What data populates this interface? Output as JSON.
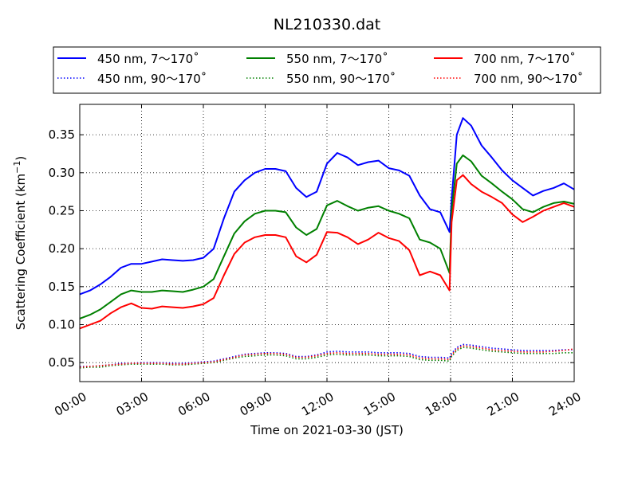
{
  "chart_data": {
    "type": "line",
    "title": "NL210330.dat",
    "xlabel": "Time on 2021-03-30 (JST)",
    "ylabel_main": "Scattering Coefficient (km",
    "ylabel_exp": "−1",
    "ylabel_close": ")",
    "xlim": [
      0,
      24
    ],
    "ylim": [
      0.025,
      0.39
    ],
    "x_ticks": [
      0,
      3,
      6,
      9,
      12,
      15,
      18,
      21,
      24
    ],
    "x_tick_labels": [
      "00:00",
      "03:00",
      "06:00",
      "09:00",
      "12:00",
      "15:00",
      "18:00",
      "21:00",
      "24:00"
    ],
    "y_ticks": [
      0.05,
      0.1,
      0.15,
      0.2,
      0.25,
      0.3,
      0.35
    ],
    "y_tick_labels": [
      "0.05",
      "0.10",
      "0.15",
      "0.20",
      "0.25",
      "0.30",
      "0.35"
    ],
    "grid": true,
    "legend_position": "top",
    "x": [
      0,
      0.5,
      1,
      1.5,
      2,
      2.5,
      3,
      3.5,
      4,
      4.5,
      5,
      5.5,
      6,
      6.5,
      7,
      7.5,
      8,
      8.5,
      9,
      9.5,
      10,
      10.5,
      11,
      11.5,
      12,
      12.5,
      13,
      13.5,
      14,
      14.5,
      15,
      15.5,
      16,
      16.5,
      17,
      17.5,
      17.95,
      18.05,
      18.3,
      18.6,
      19,
      19.5,
      20,
      20.5,
      21,
      21.5,
      22,
      22.5,
      23,
      23.5,
      24
    ],
    "series": [
      {
        "name": "450 nm, 7～170˚",
        "color": "#0000ff",
        "style": "solid",
        "values": [
          0.14,
          0.145,
          0.153,
          0.163,
          0.175,
          0.18,
          0.18,
          0.183,
          0.186,
          0.185,
          0.184,
          0.185,
          0.188,
          0.2,
          0.24,
          0.275,
          0.29,
          0.3,
          0.305,
          0.305,
          0.302,
          0.28,
          0.268,
          0.275,
          0.312,
          0.326,
          0.32,
          0.31,
          0.314,
          0.316,
          0.306,
          0.303,
          0.296,
          0.27,
          0.252,
          0.248,
          0.222,
          0.265,
          0.35,
          0.372,
          0.362,
          0.336,
          0.32,
          0.303,
          0.29,
          0.28,
          0.27,
          0.276,
          0.28,
          0.286,
          0.278
        ]
      },
      {
        "name": "450 nm, 90～170˚",
        "color": "#0000ff",
        "style": "dotted",
        "values": [
          0.045,
          0.045,
          0.046,
          0.047,
          0.049,
          0.049,
          0.05,
          0.05,
          0.05,
          0.049,
          0.049,
          0.05,
          0.051,
          0.052,
          0.055,
          0.058,
          0.061,
          0.062,
          0.063,
          0.063,
          0.062,
          0.058,
          0.058,
          0.06,
          0.064,
          0.065,
          0.064,
          0.064,
          0.064,
          0.063,
          0.063,
          0.063,
          0.062,
          0.058,
          0.057,
          0.057,
          0.056,
          0.062,
          0.07,
          0.074,
          0.073,
          0.071,
          0.069,
          0.068,
          0.067,
          0.066,
          0.066,
          0.066,
          0.066,
          0.067,
          0.067
        ]
      },
      {
        "name": "550 nm, 7～170˚",
        "color": "#008000",
        "style": "solid",
        "values": [
          0.108,
          0.113,
          0.12,
          0.13,
          0.14,
          0.145,
          0.143,
          0.143,
          0.145,
          0.144,
          0.143,
          0.146,
          0.15,
          0.16,
          0.19,
          0.22,
          0.236,
          0.246,
          0.25,
          0.25,
          0.248,
          0.228,
          0.218,
          0.226,
          0.257,
          0.263,
          0.256,
          0.25,
          0.254,
          0.256,
          0.25,
          0.246,
          0.24,
          0.212,
          0.208,
          0.2,
          0.168,
          0.25,
          0.312,
          0.323,
          0.315,
          0.296,
          0.286,
          0.275,
          0.265,
          0.252,
          0.248,
          0.255,
          0.26,
          0.262,
          0.259
        ]
      },
      {
        "name": "550 nm, 90～170˚",
        "color": "#008000",
        "style": "dotted",
        "values": [
          0.043,
          0.044,
          0.044,
          0.046,
          0.047,
          0.048,
          0.048,
          0.048,
          0.048,
          0.047,
          0.047,
          0.048,
          0.049,
          0.05,
          0.053,
          0.056,
          0.058,
          0.059,
          0.06,
          0.06,
          0.059,
          0.055,
          0.055,
          0.057,
          0.06,
          0.061,
          0.06,
          0.06,
          0.06,
          0.059,
          0.059,
          0.059,
          0.058,
          0.054,
          0.053,
          0.053,
          0.052,
          0.058,
          0.066,
          0.07,
          0.069,
          0.067,
          0.065,
          0.064,
          0.063,
          0.062,
          0.062,
          0.062,
          0.062,
          0.063,
          0.063
        ]
      },
      {
        "name": "700 nm, 7～170˚",
        "color": "#ff0000",
        "style": "solid",
        "values": [
          0.095,
          0.1,
          0.105,
          0.115,
          0.123,
          0.128,
          0.122,
          0.121,
          0.124,
          0.123,
          0.122,
          0.124,
          0.127,
          0.135,
          0.165,
          0.193,
          0.208,
          0.215,
          0.218,
          0.218,
          0.215,
          0.19,
          0.182,
          0.192,
          0.222,
          0.221,
          0.215,
          0.206,
          0.212,
          0.221,
          0.214,
          0.21,
          0.198,
          0.165,
          0.17,
          0.165,
          0.145,
          0.235,
          0.29,
          0.297,
          0.285,
          0.275,
          0.268,
          0.26,
          0.245,
          0.235,
          0.242,
          0.25,
          0.255,
          0.26,
          0.255
        ]
      },
      {
        "name": "700 nm, 90～170˚",
        "color": "#ff0000",
        "style": "dotted",
        "values": [
          0.044,
          0.045,
          0.046,
          0.047,
          0.048,
          0.049,
          0.049,
          0.049,
          0.049,
          0.048,
          0.048,
          0.049,
          0.05,
          0.051,
          0.054,
          0.057,
          0.06,
          0.061,
          0.062,
          0.062,
          0.061,
          0.057,
          0.057,
          0.059,
          0.062,
          0.063,
          0.062,
          0.062,
          0.062,
          0.061,
          0.061,
          0.061,
          0.06,
          0.056,
          0.055,
          0.055,
          0.054,
          0.06,
          0.068,
          0.072,
          0.071,
          0.069,
          0.067,
          0.066,
          0.065,
          0.064,
          0.064,
          0.064,
          0.065,
          0.066,
          0.068
        ]
      }
    ]
  }
}
